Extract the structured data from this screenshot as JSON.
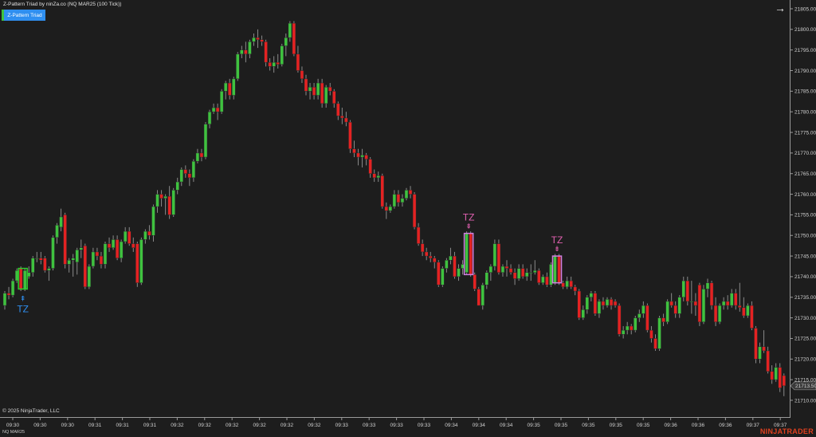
{
  "header": {
    "title": "Z-Pattern Triad by ninZa.co (NQ MAR25 (100 Tick))",
    "indicator_button": "Z-Pattern Triad",
    "nav_icon": "arrow-right-icon"
  },
  "footer": {
    "copyright": "© 2025 NinjaTrader, LLC",
    "instrument": "NQ MAR25",
    "brand": "NINJATRADER"
  },
  "colors": {
    "background": "#1d1d1d",
    "up": "#3fc23f",
    "down": "#e42222",
    "wick": "#8a8a8a",
    "bullish_signal": "#2f8ff0",
    "bearish_signal": "#e060b0",
    "bearish_box": "#d080e0",
    "bullish_box": "#2ecc2e"
  },
  "chart_data": {
    "type": "candlestick",
    "ylim": [
      21708,
      21806
    ],
    "y_ticks": [
      "21710.00",
      "21715.00",
      "21720.00",
      "21725.00",
      "21730.00",
      "21735.00",
      "21740.00",
      "21745.00",
      "21750.00",
      "21755.00",
      "21760.00",
      "21765.00",
      "21770.00",
      "21775.00",
      "21780.00",
      "21785.00",
      "21790.00",
      "21795.00",
      "21800.00",
      "21805.00"
    ],
    "x_ticks": [
      "09:30",
      "09:30",
      "09:30",
      "09:31",
      "09:31",
      "09:31",
      "09:32",
      "09:32",
      "09:32",
      "09:32",
      "09:32",
      "09:32",
      "09:33",
      "09:33",
      "09:33",
      "09:33",
      "09:34",
      "09:34",
      "09:34",
      "09:35",
      "09:35",
      "09:35",
      "09:35",
      "09:35",
      "09:36",
      "09:36",
      "09:36",
      "09:37",
      "09:37"
    ],
    "last_price": "21713.50",
    "signals": [
      {
        "label": "TZ",
        "direction": "bullish",
        "candles": [
          4,
          5
        ]
      },
      {
        "label": "TZ",
        "direction": "bearish",
        "candles": [
          115,
          116
        ]
      },
      {
        "label": "TZ",
        "direction": "bearish",
        "candles": [
          137,
          138
        ]
      }
    ],
    "candles_ohlc": [
      [
        21733,
        21736.5,
        21732,
        21736
      ],
      [
        21736,
        21737.5,
        21734.5,
        21735.5
      ],
      [
        21735.5,
        21739.5,
        21735,
        21739
      ],
      [
        21739,
        21742,
        21738.5,
        21741.5
      ],
      [
        21742,
        21742.5,
        21736.5,
        21737
      ],
      [
        21737,
        21742,
        21736.5,
        21741.5
      ],
      [
        21740,
        21742.5,
        21739.5,
        21741
      ],
      [
        21741,
        21745,
        21740,
        21744.5
      ],
      [
        21744.5,
        21746,
        21743.5,
        21744.5
      ],
      [
        21744.5,
        21746,
        21743,
        21744
      ],
      [
        21744.5,
        21745,
        21741,
        21741.5
      ],
      [
        21741.5,
        21742.5,
        21739,
        21742
      ],
      [
        21742,
        21750,
        21741.5,
        21749.5
      ],
      [
        21749.5,
        21753,
        21748,
        21752.5
      ],
      [
        21752,
        21756.5,
        21751,
        21754.5
      ],
      [
        21755,
        21755.5,
        21742,
        21743
      ],
      [
        21743,
        21744.5,
        21741,
        21744
      ],
      [
        21744,
        21745.5,
        21740,
        21744.5
      ],
      [
        21743.5,
        21747,
        21740.5,
        21746.5
      ],
      [
        21746.5,
        21749,
        21744.5,
        21747
      ],
      [
        21747.5,
        21748,
        21737,
        21737.5
      ],
      [
        21737.5,
        21743,
        21737,
        21742.5
      ],
      [
        21742.5,
        21747,
        21742,
        21746
      ],
      [
        21746,
        21747,
        21744,
        21745
      ],
      [
        21745,
        21746,
        21742,
        21743
      ],
      [
        21743,
        21748.5,
        21742,
        21748
      ],
      [
        21748,
        21749.5,
        21746,
        21747
      ],
      [
        21747,
        21750,
        21746.5,
        21749
      ],
      [
        21749,
        21750,
        21744,
        21744.5
      ],
      [
        21744.5,
        21749,
        21743.5,
        21748.5
      ],
      [
        21748.5,
        21752,
        21748,
        21751
      ],
      [
        21751,
        21752,
        21747.5,
        21748
      ],
      [
        21748,
        21749.5,
        21746,
        21747
      ],
      [
        21748,
        21748.5,
        21737.5,
        21738.5
      ],
      [
        21738.5,
        21749.5,
        21738,
        21749
      ],
      [
        21749,
        21751.5,
        21748,
        21751
      ],
      [
        21751,
        21752.5,
        21749,
        21750
      ],
      [
        21750,
        21757.5,
        21748.5,
        21757
      ],
      [
        21757,
        21761,
        21755.5,
        21760
      ],
      [
        21760,
        21761,
        21757,
        21759
      ],
      [
        21759,
        21760,
        21755,
        21759.5
      ],
      [
        21759.5,
        21762,
        21754,
        21755
      ],
      [
        21755,
        21761.5,
        21754.5,
        21761
      ],
      [
        21761,
        21764,
        21760,
        21763
      ],
      [
        21763,
        21766.5,
        21762,
        21766
      ],
      [
        21766,
        21767,
        21764,
        21765
      ],
      [
        21765,
        21766,
        21762,
        21764
      ],
      [
        21764,
        21768.5,
        21763,
        21768
      ],
      [
        21768,
        21771,
        21767.5,
        21770
      ],
      [
        21770,
        21771,
        21768,
        21769
      ],
      [
        21769,
        21777.5,
        21768.5,
        21777
      ],
      [
        21777,
        21780.5,
        21776,
        21780
      ],
      [
        21780,
        21782,
        21779.5,
        21781
      ],
      [
        21781,
        21782,
        21778,
        21780
      ],
      [
        21780,
        21785.5,
        21779.5,
        21785
      ],
      [
        21785,
        21787.5,
        21783,
        21787
      ],
      [
        21787,
        21788,
        21783,
        21784
      ],
      [
        21784,
        21788.5,
        21783,
        21788
      ],
      [
        21788,
        21794.5,
        21787.5,
        21794
      ],
      [
        21794,
        21796,
        21793,
        21795
      ],
      [
        21795,
        21797,
        21792,
        21794
      ],
      [
        21794,
        21797.5,
        21793,
        21797
      ],
      [
        21797,
        21799,
        21796,
        21798
      ],
      [
        21798,
        21800,
        21795.5,
        21797.5
      ],
      [
        21797.5,
        21798.5,
        21796,
        21797
      ],
      [
        21797,
        21797.5,
        21791,
        21792
      ],
      [
        21792,
        21793,
        21790,
        21791
      ],
      [
        21791,
        21793.5,
        21789.5,
        21792
      ],
      [
        21792,
        21794,
        21790.5,
        21791.5
      ],
      [
        21791.5,
        21796.5,
        21791,
        21796
      ],
      [
        21796,
        21799,
        21793.5,
        21798
      ],
      [
        21798,
        21802,
        21797,
        21801.5
      ],
      [
        21801.5,
        21802,
        21793.5,
        21794
      ],
      [
        21794,
        21796,
        21789.5,
        21790
      ],
      [
        21790,
        21791,
        21787,
        21788
      ],
      [
        21788,
        21789,
        21784,
        21785
      ],
      [
        21785,
        21787,
        21783,
        21786
      ],
      [
        21786,
        21787,
        21783,
        21784
      ],
      [
        21784,
        21788,
        21783,
        21787
      ],
      [
        21787,
        21788,
        21781,
        21782
      ],
      [
        21782,
        21786.5,
        21781,
        21786
      ],
      [
        21786,
        21787,
        21784,
        21785
      ],
      [
        21785,
        21785.5,
        21781,
        21782
      ],
      [
        21782,
        21782.5,
        21778,
        21779
      ],
      [
        21779,
        21781,
        21777,
        21778.5
      ],
      [
        21778.5,
        21780,
        21776.5,
        21777.5
      ],
      [
        21777.5,
        21778,
        21770,
        21771
      ],
      [
        21771,
        21773,
        21769,
        21770
      ],
      [
        21770,
        21771,
        21767,
        21769
      ],
      [
        21769,
        21771,
        21766.5,
        21769.5
      ],
      [
        21769.5,
        21770,
        21767,
        21768.5
      ],
      [
        21768.5,
        21769,
        21764,
        21765
      ],
      [
        21765,
        21766,
        21763,
        21764
      ],
      [
        21764,
        21765.5,
        21763,
        21764.5
      ],
      [
        21764.5,
        21765,
        21756.5,
        21757
      ],
      [
        21757,
        21758,
        21754,
        21756
      ],
      [
        21756,
        21757.5,
        21755.5,
        21757
      ],
      [
        21757,
        21761,
        21756.5,
        21760
      ],
      [
        21760,
        21761,
        21757,
        21758
      ],
      [
        21758,
        21760,
        21757,
        21759
      ],
      [
        21759,
        21761.5,
        21758.5,
        21761
      ],
      [
        21761,
        21762,
        21759,
        21760
      ],
      [
        21760,
        21760.5,
        21751.5,
        21752
      ],
      [
        21752,
        21753,
        21747.5,
        21748
      ],
      [
        21748,
        21749,
        21745,
        21746
      ],
      [
        21746,
        21747,
        21744,
        21745
      ],
      [
        21745,
        21746,
        21743.5,
        21744.5
      ],
      [
        21744.5,
        21745,
        21742,
        21743.5
      ],
      [
        21743.5,
        21744,
        21737.5,
        21738
      ],
      [
        21738,
        21742.5,
        21737.5,
        21742
      ],
      [
        21742,
        21744.5,
        21741,
        21744
      ],
      [
        21744,
        21747,
        21743,
        21745
      ],
      [
        21745,
        21746,
        21739.5,
        21740
      ],
      [
        21740,
        21743,
        21739,
        21742
      ],
      [
        21742,
        21744,
        21740.5,
        21743
      ],
      [
        21741,
        21751,
        21740.5,
        21750.5
      ],
      [
        21750.5,
        21751,
        21740,
        21740.5
      ],
      [
        21740.5,
        21741,
        21736.5,
        21737
      ],
      [
        21737,
        21737.5,
        21733,
        21733
      ],
      [
        21733,
        21738.5,
        21732,
        21738
      ],
      [
        21738,
        21741.5,
        21737,
        21741
      ],
      [
        21741,
        21743,
        21739,
        21742.5
      ],
      [
        21742.5,
        21749,
        21741.5,
        21748
      ],
      [
        21748,
        21749,
        21740.5,
        21741
      ],
      [
        21741,
        21743,
        21740,
        21742.5
      ],
      [
        21742.5,
        21744,
        21740,
        21742
      ],
      [
        21742,
        21743,
        21740.5,
        21741
      ],
      [
        21741,
        21742,
        21738,
        21739.5
      ],
      [
        21739.5,
        21743,
        21739,
        21742
      ],
      [
        21742,
        21743,
        21739.5,
        21740
      ],
      [
        21740,
        21742,
        21739,
        21741
      ],
      [
        21741,
        21743,
        21739,
        21741
      ],
      [
        21741,
        21744,
        21740.5,
        21741.5
      ],
      [
        21741.5,
        21742,
        21738,
        21738.5
      ],
      [
        21738.5,
        21740.5,
        21738,
        21740
      ],
      [
        21740,
        21741,
        21737.5,
        21738
      ],
      [
        21738,
        21743.5,
        21737.5,
        21743
      ],
      [
        21738.5,
        21745.5,
        21738,
        21745
      ],
      [
        21745,
        21745.5,
        21738,
        21738.5
      ],
      [
        21738.5,
        21739,
        21737,
        21737.5
      ],
      [
        21737.5,
        21740,
        21737,
        21739
      ],
      [
        21739,
        21740,
        21737,
        21737.5
      ],
      [
        21737.5,
        21738,
        21735.5,
        21736.5
      ],
      [
        21736.5,
        21737,
        21729.5,
        21730
      ],
      [
        21730,
        21733,
        21729.5,
        21732
      ],
      [
        21732,
        21735.5,
        21731,
        21735
      ],
      [
        21735,
        21736.5,
        21734,
        21736
      ],
      [
        21736,
        21736.5,
        21730.5,
        21731
      ],
      [
        21731,
        21734.5,
        21730,
        21734
      ],
      [
        21734,
        21735,
        21732,
        21733
      ],
      [
        21733,
        21735,
        21732.5,
        21734.5
      ],
      [
        21734.5,
        21735,
        21732,
        21733
      ],
      [
        21734,
        21734.5,
        21732.5,
        21733
      ],
      [
        21733,
        21733.5,
        21725.5,
        21726
      ],
      [
        21726,
        21728,
        21725,
        21727
      ],
      [
        21727,
        21729,
        21726,
        21728
      ],
      [
        21728,
        21728.5,
        21726,
        21727
      ],
      [
        21727,
        21730.5,
        21726.5,
        21730
      ],
      [
        21730,
        21732,
        21729,
        21731
      ],
      [
        21731,
        21734,
        21730,
        21733
      ],
      [
        21733,
        21733.5,
        21726.5,
        21727
      ],
      [
        21727,
        21728,
        21724,
        21725
      ],
      [
        21725,
        21726,
        21722,
        21722.5
      ],
      [
        21722.5,
        21730.5,
        21722,
        21730
      ],
      [
        21730,
        21731,
        21728,
        21729
      ],
      [
        21729,
        21734.5,
        21728.5,
        21734
      ],
      [
        21734,
        21736,
        21732.5,
        21733
      ],
      [
        21733,
        21734,
        21730,
        21731
      ],
      [
        21731,
        21735.5,
        21730,
        21735
      ],
      [
        21735,
        21740,
        21734,
        21739
      ],
      [
        21739,
        21740,
        21733,
        21734
      ],
      [
        21734,
        21739,
        21731,
        21734
      ],
      [
        21734,
        21736,
        21730.5,
        21733
      ],
      [
        21738,
        21738.5,
        21728,
        21729
      ],
      [
        21729,
        21738,
        21728.5,
        21737
      ],
      [
        21737,
        21739.5,
        21735,
        21738.5
      ],
      [
        21738.5,
        21739,
        21732,
        21733
      ],
      [
        21733,
        21735,
        21728,
        21729
      ],
      [
        21729,
        21733.5,
        21728.5,
        21733
      ],
      [
        21733,
        21735,
        21732,
        21734
      ],
      [
        21734,
        21735.5,
        21732,
        21733
      ],
      [
        21733,
        21737,
        21732.5,
        21736
      ],
      [
        21736,
        21737,
        21732,
        21733
      ],
      [
        21733,
        21738.5,
        21731.5,
        21732.5
      ],
      [
        21732.5,
        21735,
        21730,
        21730.5
      ],
      [
        21730.5,
        21733.5,
        21730,
        21733
      ],
      [
        21733,
        21734,
        21727,
        21727.5
      ],
      [
        21727.5,
        21728,
        21719,
        21720
      ],
      [
        21720,
        21724,
        21719,
        21723
      ],
      [
        21723,
        21727,
        21721.5,
        21722
      ],
      [
        21722,
        21723,
        21716.5,
        21717
      ],
      [
        21717,
        21718.5,
        21714,
        21715
      ],
      [
        21715,
        21719,
        21714.5,
        21718
      ],
      [
        21718,
        21719,
        21712,
        21713
      ],
      [
        21716,
        21716.5,
        21711,
        21713.5
      ]
    ]
  }
}
